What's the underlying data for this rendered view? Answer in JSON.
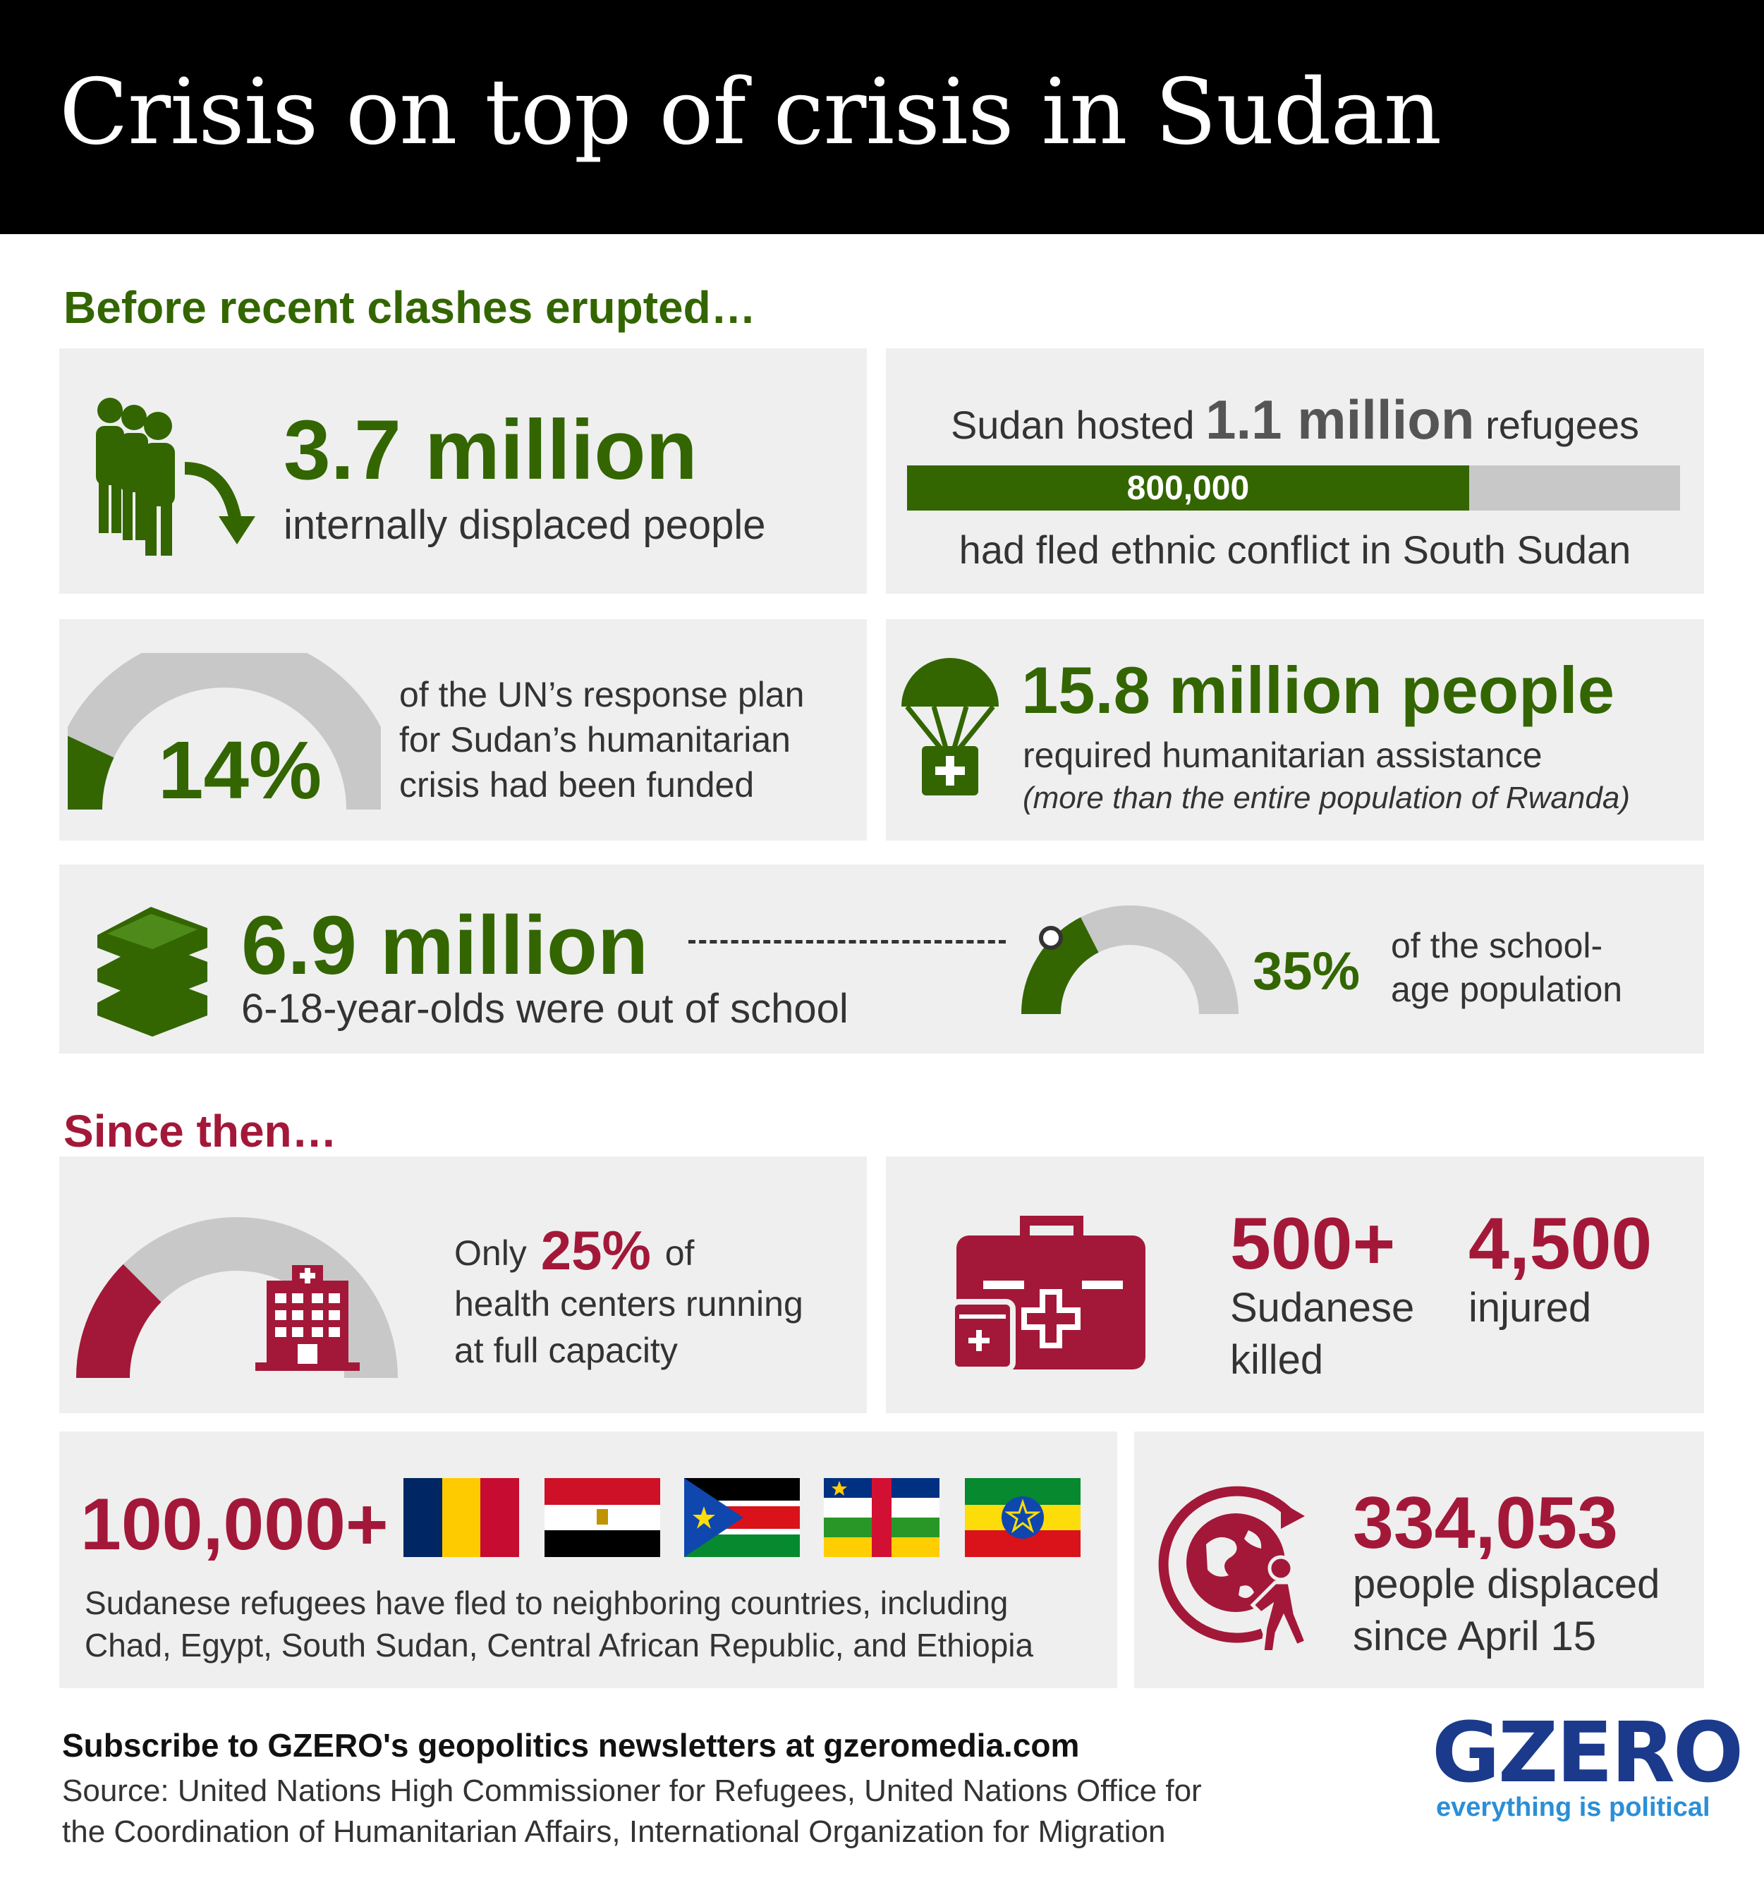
{
  "title": "Crisis on top of crisis in Sudan",
  "before": {
    "heading": "Before recent clashes erupted…",
    "idp": {
      "value": "3.7 million",
      "label": "internally displaced people"
    },
    "refugees": {
      "prefix": "Sudan hosted",
      "value": "1.1 million",
      "suffix": "refugees",
      "bar_label": "800,000",
      "bar_fraction": 0.727,
      "caption": "had fled ethnic conflict in South Sudan"
    },
    "funding": {
      "value": "14%",
      "fraction": 0.14,
      "line1": "of the UN’s response plan",
      "line2": "for Sudan’s humanitarian",
      "line3": "crisis had been funded"
    },
    "assistance": {
      "value": "15.8 million people",
      "line1": "required humanitarian assistance",
      "line2": "(more than the entire population of Rwanda)"
    },
    "school": {
      "value": "6.9 million",
      "label": "6-18-year-olds were out of school",
      "percent": "35%",
      "fraction": 0.35,
      "note1": "of the school-",
      "note2": "age population"
    }
  },
  "since": {
    "heading": "Since then…",
    "health": {
      "prefix": "Only",
      "value": "25%",
      "suffix": "of",
      "fraction": 0.25,
      "line2": "health centers running",
      "line3": "at full capacity"
    },
    "casualties": {
      "killed_value": "500+",
      "killed_line1": "Sudanese",
      "killed_line2": "killed",
      "injured_value": "4,500",
      "injured_label": "injured"
    },
    "refugees": {
      "value": "100,000+",
      "line1": "Sudanese refugees have fled to neighboring countries, including",
      "line2": "Chad, Egypt, South Sudan, Central African Republic, and Ethiopia"
    },
    "displaced": {
      "value": "334,053",
      "line1": "people displaced",
      "line2": "since April 15"
    }
  },
  "footer": {
    "subscribe": "Subscribe to GZERO's geopolitics newsletters at gzeromedia.com",
    "source1": "Source: United Nations High Commissioner for Refugees, United Nations Office for",
    "source2": "the Coordination of Humanitarian Affairs, International Organization for Migration",
    "logo": "GZERO",
    "tagline": "everything is political"
  },
  "colors": {
    "green": "#336600",
    "red": "#a31838",
    "panel": "#efefef",
    "gray": "#c8c8c8",
    "header": "#000000",
    "logo_blue": "#1b3a8c",
    "tagline_blue": "#2b8fd6"
  },
  "icons": {
    "idp": "people-arrow-icon",
    "assistance": "airdrop-aid-icon",
    "school": "books-icon",
    "health": "hospital-icon",
    "casualties": "first-aid-kit-icon",
    "displaced": "globe-walking-person-icon"
  },
  "flags": [
    "chad-flag",
    "egypt-flag",
    "south-sudan-flag",
    "central-african-republic-flag",
    "ethiopia-flag"
  ]
}
